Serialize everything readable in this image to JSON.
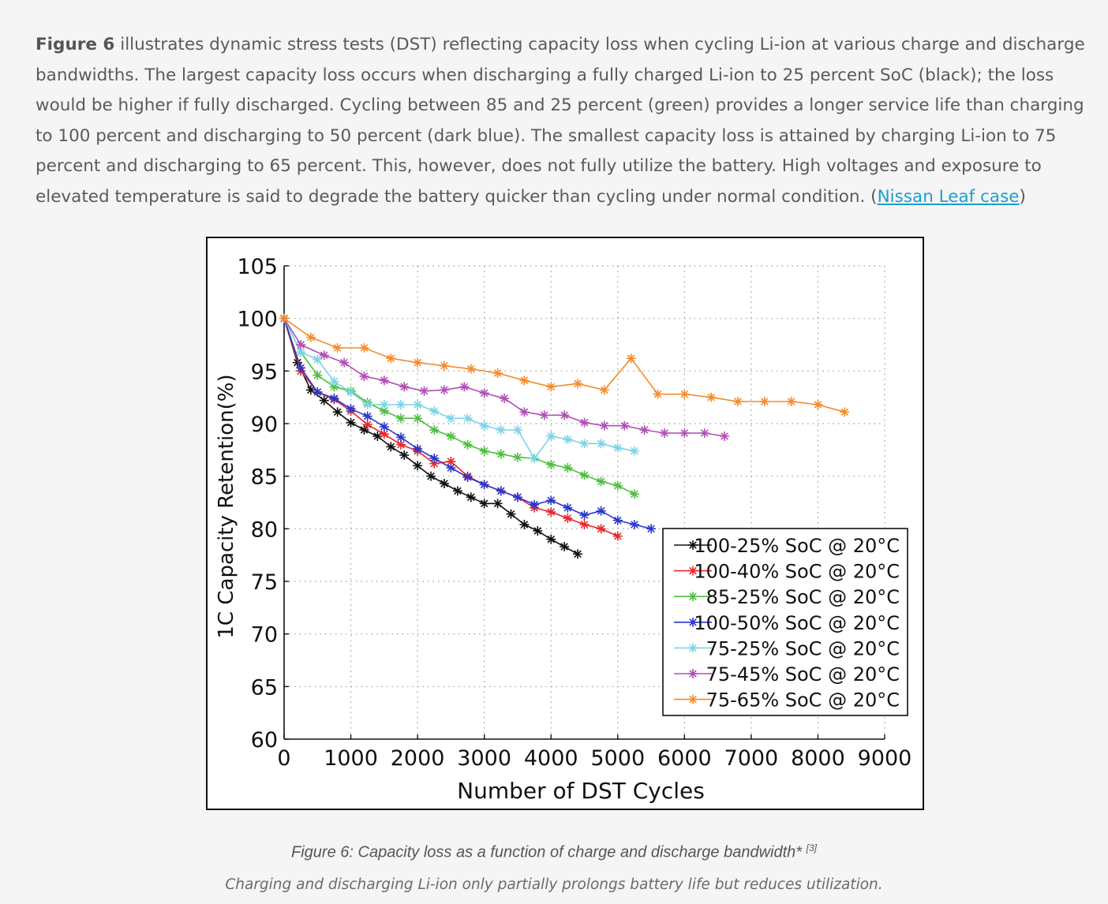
{
  "intro": {
    "lead": "Figure 6",
    "text": " illustrates dynamic stress tests (DST) reflecting capacity loss when cycling Li-ion at various charge and discharge bandwidths. The largest capacity loss occurs when discharging a fully charged Li-ion to 25 percent SoC (black); the loss would be higher if fully discharged. Cycling between 85 and 25 percent (green) provides a longer service life than charging to 100 percent and discharging to 50 percent (dark blue). The smallest capacity loss is attained by charging Li-ion to 75 percent and discharging to 65 percent. This, however, does not fully utilize the battery. High voltages and exposure to elevated temperature is said to degrade the battery quicker than cycling under normal condition. (",
    "link_text": "Nissan Leaf case",
    "close": ")"
  },
  "caption": {
    "title": "Figure 6: Capacity loss as a function of charge and discharge bandwidth*",
    "ref": "[3]",
    "subtitle": "Charging and discharging Li-ion only partially prolongs battery life but reduces utilization."
  },
  "chart_data": {
    "type": "line",
    "title": "",
    "xlabel": "Number of DST Cycles",
    "ylabel": "1C Capacity Retention(%)",
    "xlim": [
      0,
      9000
    ],
    "ylim": [
      60,
      105
    ],
    "xticks": [
      "0",
      "1000",
      "2000",
      "3000",
      "4000",
      "5000",
      "6000",
      "7000",
      "8000",
      "9000"
    ],
    "yticks": [
      "60",
      "65",
      "70",
      "75",
      "80",
      "85",
      "90",
      "95",
      "100",
      "105"
    ],
    "grid": true,
    "legend_position": "bottom-right",
    "marker": "asterisk",
    "series": [
      {
        "name": "100-25% SoC @ 20°C",
        "color": "#111111",
        "x": [
          0,
          200,
          400,
          600,
          800,
          1000,
          1200,
          1400,
          1600,
          1800,
          2000,
          2200,
          2400,
          2600,
          2800,
          3000,
          3200,
          3400,
          3600,
          3800,
          4000,
          4200,
          4400
        ],
        "y": [
          100,
          95.8,
          93.2,
          92.2,
          91.1,
          90.1,
          89.4,
          88.8,
          87.8,
          87.0,
          86.0,
          85.0,
          84.3,
          83.6,
          83.0,
          82.4,
          82.4,
          81.4,
          80.4,
          79.8,
          79.0,
          78.3,
          77.6
        ]
      },
      {
        "name": "100-40% SoC @ 20°C",
        "color": "#e8262c",
        "x": [
          0,
          250,
          500,
          750,
          1000,
          1250,
          1500,
          1750,
          2000,
          2250,
          2500,
          2750,
          3000,
          3250,
          3500,
          3750,
          4000,
          4250,
          4500,
          4750,
          5000
        ],
        "y": [
          100,
          95.0,
          93.0,
          92.3,
          91.2,
          89.9,
          89.0,
          88.0,
          87.4,
          86.2,
          86.4,
          85.0,
          84.2,
          83.6,
          83.0,
          82.0,
          81.6,
          81.0,
          80.4,
          80.0,
          79.3
        ]
      },
      {
        "name": "85-25% SoC @ 20°C",
        "color": "#4dbf3f",
        "x": [
          0,
          250,
          500,
          750,
          1000,
          1250,
          1500,
          1750,
          2000,
          2250,
          2500,
          2750,
          3000,
          3250,
          3500,
          3750,
          4000,
          4250,
          4500,
          4750,
          5000,
          5250
        ],
        "y": [
          100,
          96.8,
          94.6,
          93.5,
          93.1,
          92.0,
          91.2,
          90.5,
          90.5,
          89.4,
          88.8,
          88.0,
          87.4,
          87.1,
          86.8,
          86.7,
          86.1,
          85.8,
          85.1,
          84.5,
          84.1,
          83.3
        ]
      },
      {
        "name": "100-50% SoC @ 20°C",
        "color": "#2b37c9",
        "x": [
          0,
          250,
          500,
          750,
          1000,
          1250,
          1500,
          1750,
          2000,
          2250,
          2500,
          2750,
          3000,
          3250,
          3500,
          3750,
          4000,
          4250,
          4500,
          4750,
          5000,
          5250,
          5500
        ],
        "y": [
          100,
          95.3,
          93.0,
          92.4,
          91.4,
          90.7,
          89.7,
          88.7,
          87.6,
          86.7,
          85.8,
          84.9,
          84.2,
          83.6,
          83.0,
          82.3,
          82.7,
          82.0,
          81.3,
          81.7,
          80.8,
          80.4,
          80.0
        ]
      },
      {
        "name": "75-25% SoC @ 20°C",
        "color": "#7dd3e8",
        "x": [
          0,
          250,
          500,
          750,
          1000,
          1250,
          1500,
          1750,
          2000,
          2250,
          2500,
          2750,
          3000,
          3250,
          3500,
          3750,
          4000,
          4250,
          4500,
          4750,
          5000,
          5250
        ],
        "y": [
          100,
          96.8,
          96.1,
          94.0,
          93.0,
          91.8,
          91.8,
          91.8,
          91.8,
          91.2,
          90.5,
          90.5,
          89.8,
          89.4,
          89.4,
          86.7,
          88.8,
          88.5,
          88.1,
          88.1,
          87.7,
          87.4
        ]
      },
      {
        "name": "75-45% SoC @ 20°C",
        "color": "#b04fb5",
        "x": [
          0,
          250,
          600,
          900,
          1200,
          1500,
          1800,
          2100,
          2400,
          2700,
          3000,
          3300,
          3600,
          3900,
          4200,
          4500,
          4800,
          5100,
          5400,
          5700,
          6000,
          6300,
          6600
        ],
        "y": [
          100,
          97.5,
          96.5,
          95.8,
          94.5,
          94.1,
          93.5,
          93.1,
          93.2,
          93.5,
          92.9,
          92.4,
          91.1,
          90.8,
          90.8,
          90.1,
          89.8,
          89.8,
          89.4,
          89.1,
          89.1,
          89.1,
          88.8
        ]
      },
      {
        "name": "75-65% SoC @ 20°C",
        "color": "#f58b2b",
        "x": [
          0,
          400,
          800,
          1200,
          1600,
          2000,
          2400,
          2800,
          3200,
          3600,
          4000,
          4400,
          4800,
          5200,
          5600,
          6000,
          6400,
          6800,
          7200,
          7600,
          8000,
          8400
        ],
        "y": [
          100,
          98.2,
          97.2,
          97.2,
          96.2,
          95.8,
          95.5,
          95.2,
          94.8,
          94.1,
          93.5,
          93.8,
          93.2,
          96.2,
          92.8,
          92.8,
          92.5,
          92.1,
          92.1,
          92.1,
          91.8,
          91.1
        ]
      }
    ]
  }
}
